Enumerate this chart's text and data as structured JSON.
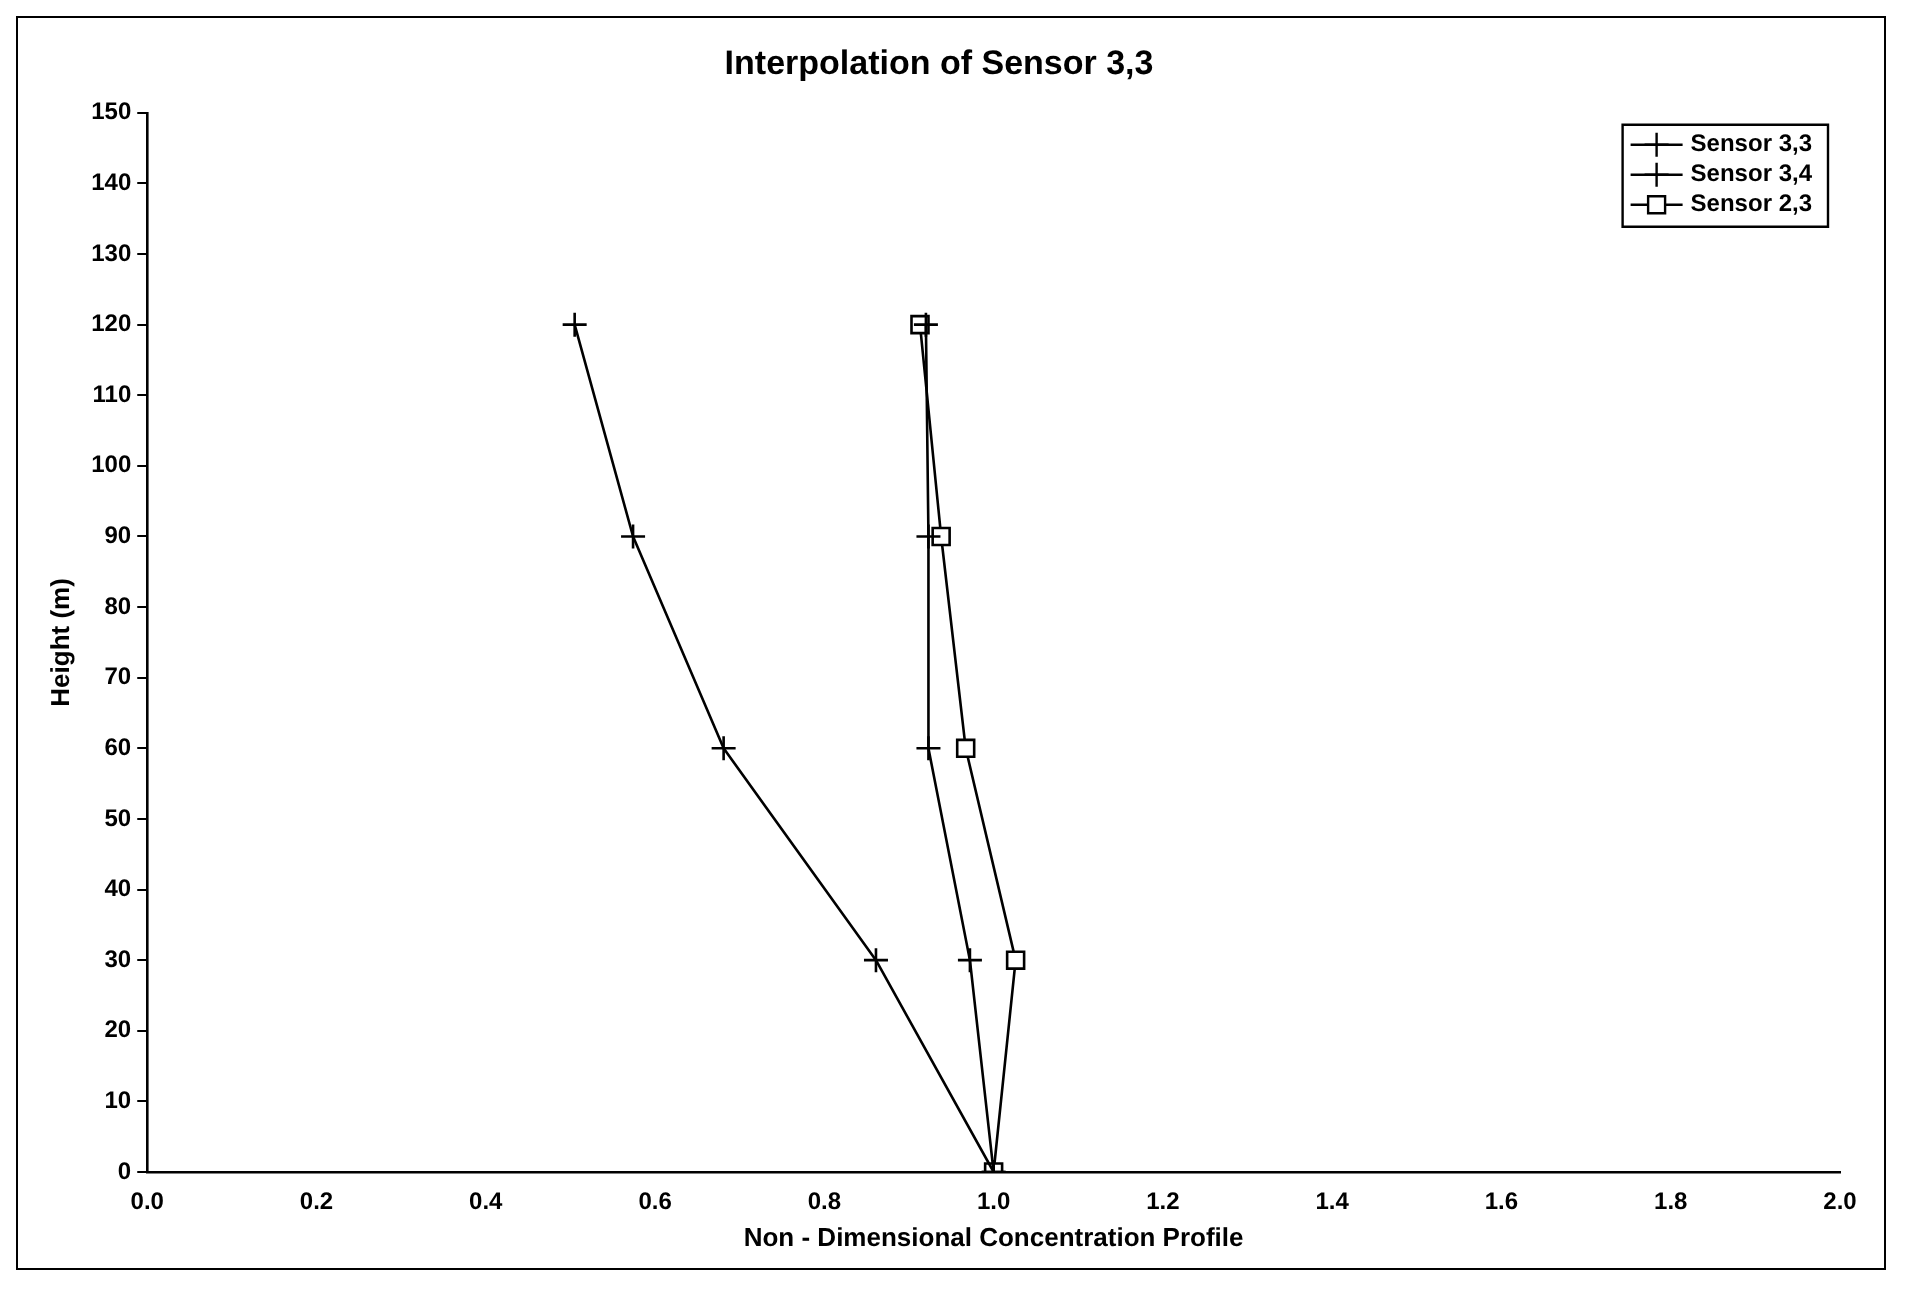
{
  "chart_data": {
    "type": "line",
    "title": "Interpolation of Sensor 3,3",
    "xlabel": "Non - Dimensional Concentration Profile",
    "ylabel": "Height (m)",
    "series": [
      {
        "name": "Sensor 3,3",
        "color": "#000000",
        "marker": "cross",
        "x": [
          1.0,
          0.972,
          0.923,
          0.923,
          0.92
        ],
        "values": [
          0,
          30,
          60,
          90,
          120
        ]
      },
      {
        "name": "Sensor 3,4",
        "color": "#000000",
        "marker": "cross",
        "x": [
          1.0,
          0.861,
          0.681,
          0.574,
          0.505
        ],
        "values": [
          0,
          30,
          60,
          90,
          120
        ]
      },
      {
        "name": "Sensor 2,3",
        "color": "#000000",
        "marker": "square",
        "x": [
          1.0,
          1.026,
          0.967,
          0.938,
          0.913
        ],
        "values": [
          0,
          30,
          60,
          90,
          120
        ]
      }
    ],
    "xlim": [
      0,
      2
    ],
    "ylim": [
      0,
      150
    ],
    "xticks": [
      {
        "value": 0,
        "label": "0.0"
      },
      {
        "value": 0.2,
        "label": "0.2"
      },
      {
        "value": 0.4,
        "label": "0.4"
      },
      {
        "value": 0.6,
        "label": "0.6"
      },
      {
        "value": 0.8,
        "label": "0.8"
      },
      {
        "value": 1,
        "label": "1.0"
      },
      {
        "value": 1.2,
        "label": "1.2"
      },
      {
        "value": 1.4,
        "label": "1.4"
      },
      {
        "value": 1.6,
        "label": "1.6"
      },
      {
        "value": 1.8,
        "label": "1.8"
      },
      {
        "value": 2,
        "label": "2.0"
      }
    ],
    "yticks": [
      0,
      10,
      20,
      30,
      40,
      50,
      60,
      70,
      80,
      90,
      100,
      110,
      120,
      130,
      140,
      150
    ],
    "grid": false,
    "legend": "top right",
    "line_style": "solid"
  }
}
